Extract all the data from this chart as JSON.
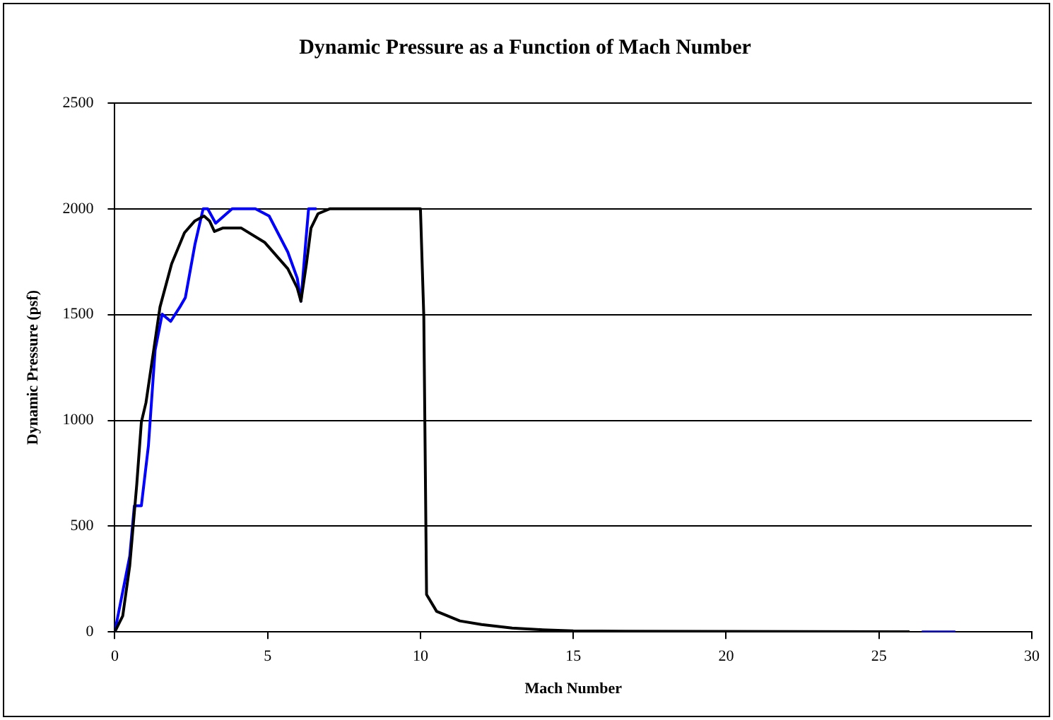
{
  "chart_data": {
    "type": "line",
    "title": "Dynamic Pressure as a Function of Mach Number",
    "xlabel": "Mach Number",
    "ylabel": "Dynamic Pressure (psf)",
    "xlim": [
      0,
      30
    ],
    "xticks": [
      0,
      5,
      10,
      15,
      20,
      25,
      30
    ],
    "ylim": [
      0,
      2500
    ],
    "yticks": [
      0,
      500,
      1000,
      1500,
      2000,
      2500
    ],
    "grid": "y",
    "marker": "none",
    "line_style": "solid",
    "series": [
      {
        "color": "#000000",
        "x": [
          0,
          0.26,
          0.49,
          0.72,
          0.87,
          1.02,
          1.25,
          1.48,
          1.86,
          2.28,
          2.62,
          2.92,
          3.1,
          3.26,
          3.53,
          4.14,
          4.9,
          5.66,
          5.97,
          6.09,
          6.27,
          6.42,
          6.65,
          7.03,
          10,
          10.11,
          10.2,
          10.53,
          11.29,
          12,
          13,
          14,
          15,
          16.7,
          20,
          26
        ],
        "values": [
          0,
          75,
          313,
          698,
          992,
          1083,
          1309,
          1536,
          1740,
          1887,
          1943,
          1966,
          1943,
          1893,
          1909,
          1909,
          1842,
          1717,
          1626,
          1563,
          1740,
          1909,
          1977,
          2000,
          2000,
          1490,
          177,
          97,
          52,
          35,
          18,
          10,
          5,
          3,
          2,
          1
        ]
      },
      {
        "color": "#0000ff",
        "x": [
          0,
          0.49,
          0.64,
          0.87,
          1.1,
          1.32,
          1.55,
          1.83,
          2.13,
          2.31,
          2.62,
          2.89,
          3.04,
          3.3,
          3.84,
          4.6,
          5.05,
          5.66,
          5.97,
          6.09,
          6.24,
          6.34,
          6.6,
          10,
          20,
          26.4,
          27.5
        ],
        "values": [
          0,
          358,
          596,
          596,
          879,
          1332,
          1502,
          1468,
          1536,
          1581,
          1830,
          2000,
          2000,
          1932,
          2000,
          2000,
          1966,
          1796,
          1672,
          1563,
          1830,
          2000,
          2000,
          null,
          null,
          0,
          0
        ]
      }
    ]
  }
}
